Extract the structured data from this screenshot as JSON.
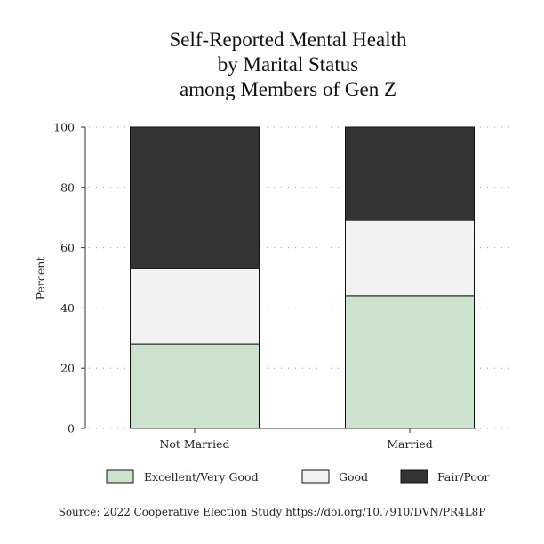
{
  "chart_data": {
    "type": "bar",
    "stacked": true,
    "title": [
      "Self-Reported Mental Health",
      "by Marital Status",
      "among Members of Gen Z"
    ],
    "xlabel": "",
    "ylabel": "Percent",
    "ylim": [
      0,
      100
    ],
    "yticks": [
      0,
      20,
      40,
      60,
      80,
      100
    ],
    "grid": "horizontal dotted",
    "categories": [
      "Not Married",
      "Married"
    ],
    "series": [
      {
        "name": "Excellent/Very Good",
        "color": "#cde3cd",
        "values": [
          28,
          44
        ]
      },
      {
        "name": "Good",
        "color": "#f2f2f2",
        "values": [
          25,
          25
        ]
      },
      {
        "name": "Fair/Poor",
        "color": "#333333",
        "values": [
          47,
          31
        ]
      }
    ],
    "legend_position": "bottom"
  },
  "source": "Source: 2022 Cooperative Election Study https://doi.org/10.7910/DVN/PR4L8P"
}
